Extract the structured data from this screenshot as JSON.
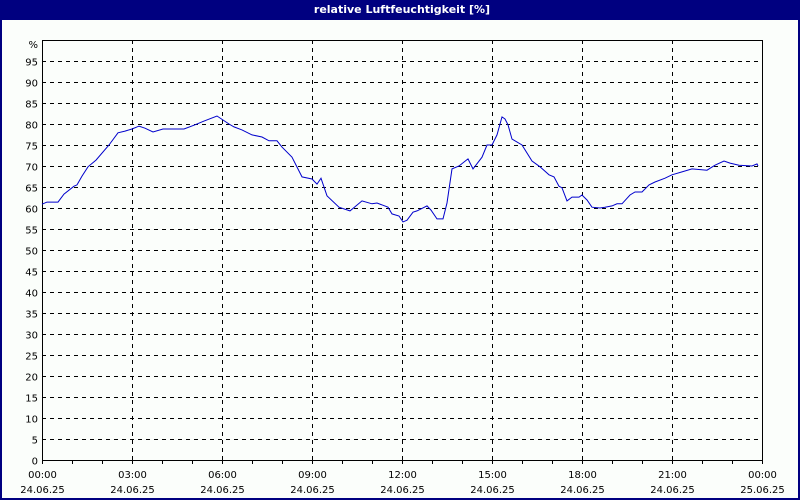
{
  "window": {
    "title": "relative Luftfeuchtigkeit [%]",
    "title_bg": "#000080",
    "border_color": "#000080",
    "background": "#fbfefb"
  },
  "chart_data": {
    "type": "line",
    "title": "relative Luftfeuchtigkeit [%]",
    "xlabel": "",
    "ylabel": "%",
    "ylim": [
      0,
      100
    ],
    "xlim": [
      "24.06.25 00:00",
      "25.06.25 00:00"
    ],
    "grid": true,
    "grid_style": "dashed",
    "legend": null,
    "y_ticks": [
      0,
      5,
      10,
      15,
      20,
      25,
      30,
      35,
      40,
      45,
      50,
      55,
      60,
      65,
      70,
      75,
      80,
      85,
      90,
      95
    ],
    "y_unit_label": "%",
    "x_ticks": [
      {
        "time": "00:00",
        "date": "24.06.25"
      },
      {
        "time": "03:00",
        "date": "24.06.25"
      },
      {
        "time": "06:00",
        "date": "24.06.25"
      },
      {
        "time": "09:00",
        "date": "24.06.25"
      },
      {
        "time": "12:00",
        "date": "24.06.25"
      },
      {
        "time": "15:00",
        "date": "24.06.25"
      },
      {
        "time": "18:00",
        "date": "24.06.25"
      },
      {
        "time": "21:00",
        "date": "24.06.25"
      },
      {
        "time": "00:00",
        "date": "25.06.25"
      }
    ],
    "series": [
      {
        "name": "relative Luftfeuchtigkeit",
        "color": "#0000cc",
        "x": [
          "00:00",
          "00:10",
          "00:32",
          "00:44",
          "01:04",
          "01:10",
          "01:20",
          "01:32",
          "01:48",
          "02:14",
          "02:32",
          "02:46",
          "03:00",
          "03:14",
          "03:26",
          "03:42",
          "04:02",
          "04:44",
          "05:06",
          "05:24",
          "05:50",
          "06:14",
          "06:24",
          "06:40",
          "07:00",
          "07:20",
          "07:34",
          "07:50",
          "08:00",
          "08:20",
          "08:40",
          "09:00",
          "09:10",
          "09:18",
          "09:30",
          "09:54",
          "10:16",
          "10:40",
          "11:00",
          "11:10",
          "11:32",
          "11:40",
          "11:54",
          "12:02",
          "12:10",
          "12:22",
          "12:30",
          "12:50",
          "12:58",
          "13:10",
          "13:22",
          "13:30",
          "13:40",
          "13:54",
          "14:12",
          "14:22",
          "14:40",
          "14:50",
          "15:00",
          "15:10",
          "15:20",
          "15:26",
          "15:32",
          "15:40",
          "16:00",
          "16:20",
          "16:36",
          "16:54",
          "17:04",
          "17:14",
          "17:20",
          "17:30",
          "17:40",
          "17:54",
          "18:00",
          "18:10",
          "18:20",
          "18:36",
          "18:46",
          "19:00",
          "19:10",
          "19:20",
          "19:36",
          "19:46",
          "20:00",
          "20:14",
          "20:26",
          "20:46",
          "21:00",
          "21:20",
          "21:40",
          "22:10",
          "22:26",
          "22:44",
          "22:56",
          "23:14",
          "23:40",
          "23:50",
          "23:52"
        ],
        "values": [
          60.9,
          61.4,
          61.4,
          63.3,
          65.2,
          65.5,
          67.6,
          69.8,
          71.4,
          75.0,
          77.9,
          78.3,
          78.8,
          79.5,
          79.0,
          78.1,
          78.8,
          78.8,
          79.8,
          80.7,
          81.9,
          80.0,
          79.3,
          78.6,
          77.4,
          76.9,
          76.0,
          76.0,
          74.5,
          72.1,
          67.4,
          66.9,
          65.7,
          67.1,
          62.9,
          60.2,
          59.3,
          61.7,
          61.0,
          61.2,
          60.2,
          58.6,
          58.1,
          56.7,
          57.1,
          59.0,
          59.3,
          60.5,
          59.5,
          57.4,
          57.4,
          61.2,
          69.3,
          70.0,
          71.7,
          69.3,
          72.1,
          75.0,
          75.0,
          77.4,
          81.7,
          81.2,
          79.8,
          76.4,
          75.0,
          71.2,
          69.8,
          67.9,
          67.4,
          65.2,
          64.8,
          61.7,
          62.6,
          62.6,
          63.1,
          61.9,
          60.2,
          60.0,
          60.2,
          60.5,
          61.0,
          61.0,
          63.1,
          63.8,
          63.8,
          65.5,
          66.2,
          67.1,
          67.9,
          68.6,
          69.3,
          69.0,
          70.2,
          71.2,
          70.7,
          70.2,
          70.0,
          70.5,
          70.0
        ]
      }
    ]
  }
}
